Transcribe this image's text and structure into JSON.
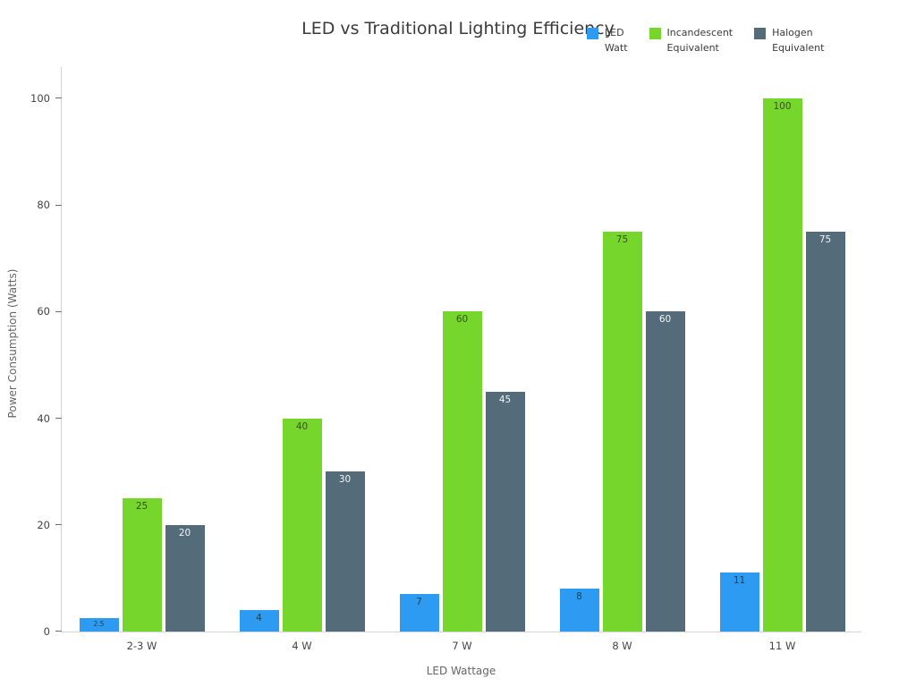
{
  "page": {
    "background": "#ffffff"
  },
  "chart_data": {
    "type": "bar",
    "title": "LED vs Traditional Lighting Efficiency",
    "xlabel": "LED Wattage",
    "ylabel": "Power Consumption (Watts)",
    "categories": [
      "2-3 W",
      "4 W",
      "7 W",
      "8 W",
      "11 W"
    ],
    "series": [
      {
        "name": "LED Watt",
        "legend_lines": [
          "LED",
          "Watt"
        ],
        "color": "#2e9bf3",
        "label_color": "#20404f",
        "values": [
          2.5,
          4,
          7,
          8,
          11
        ]
      },
      {
        "name": "Incandescent Equivalent",
        "legend_lines": [
          "Incandescent",
          "Equivalent"
        ],
        "color": "#77d62c",
        "label_color": "#35501b",
        "values": [
          25,
          40,
          60,
          75,
          100
        ]
      },
      {
        "name": "Halogen Equivalent",
        "legend_lines": [
          "Halogen",
          "Equivalent"
        ],
        "color": "#546b7a",
        "label_color": "#f2f5f7",
        "values": [
          20,
          30,
          45,
          60,
          75
        ]
      }
    ],
    "yticks": [
      0,
      20,
      40,
      60,
      80,
      100
    ],
    "ylim": [
      0,
      106
    ],
    "grid": false,
    "legend_position": "top-right"
  }
}
